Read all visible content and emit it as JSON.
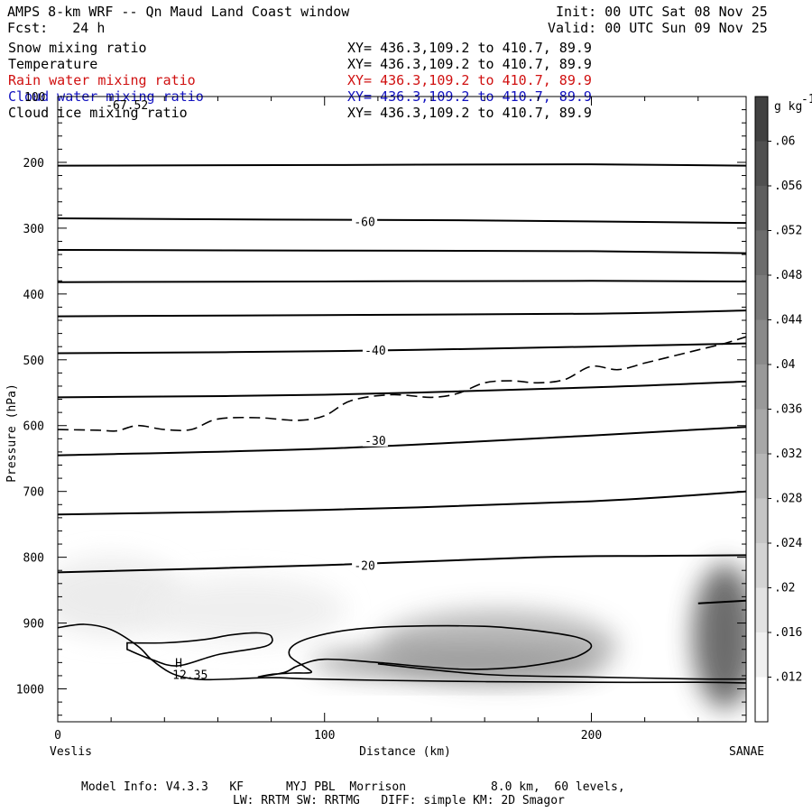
{
  "header": {
    "title": "AMPS 8-km WRF -- Qn Maud Land Coast window",
    "forecast": "Fcst:   24 h",
    "init": "Init: 00 UTC Sat 08 Nov 25",
    "valid": "Valid: 00 UTC Sun 09 Nov 25"
  },
  "legend": [
    {
      "label": "Snow mixing ratio",
      "xy": "XY= 436.3,109.2 to 410.7, 89.9",
      "color": "#000000"
    },
    {
      "label": "Temperature",
      "xy": "XY= 436.3,109.2 to 410.7, 89.9",
      "color": "#000000"
    },
    {
      "label": "Rain water mixing ratio",
      "xy": "XY= 436.3,109.2 to 410.7, 89.9",
      "color": "#d01010"
    },
    {
      "label": "Cloud water mixing ratio",
      "xy": "XY= 436.3,109.2 to 410.7, 89.9",
      "color": "#1010c0"
    },
    {
      "label": "Cloud ice mixing ratio",
      "xy": "XY= 436.3,109.2 to 410.7, 89.9",
      "color": "#000000"
    }
  ],
  "footer": {
    "line1": "Model Info: V4.3.3   KF      MYJ PBL  Morrison            8.0 km,  60 levels,",
    "line2": "LW: RRTM SW: RRTMG   DIFF: simple KM: 2D Smagor"
  },
  "chart_data": {
    "type": "contour",
    "ylabel": "Pressure (hPa)",
    "xlabel": "Distance (km)",
    "x_start_label": "Veslis",
    "x_end_label": "SANAE",
    "xlim": [
      0,
      258
    ],
    "ylim": [
      1050,
      100
    ],
    "y_ticks": [
      200,
      300,
      400,
      500,
      600,
      700,
      800,
      900,
      1000
    ],
    "y_top_tick": "100",
    "x_ticks": [
      0,
      100,
      200
    ],
    "colorbar": {
      "unit": "g kg",
      "unit_sup": "-1",
      "ticks": [
        ".06",
        ".056",
        ".052",
        ".048",
        ".044",
        ".04",
        ".036",
        ".032",
        ".028",
        ".024",
        ".02",
        ".016",
        ".012"
      ]
    },
    "temperature_labels": [
      {
        "text": "-60",
        "x": 115,
        "p": 290
      },
      {
        "text": "-40",
        "x": 119,
        "p": 485
      },
      {
        "text": "-30",
        "x": 119,
        "p": 622
      },
      {
        "text": "-20",
        "x": 115,
        "p": 812
      }
    ],
    "annotations": [
      {
        "text": "-67.52",
        "x": 18,
        "p": 112
      },
      {
        "text": "H",
        "x": 44,
        "p": 960
      },
      {
        "text": "12.35",
        "x": 43,
        "p": 978
      }
    ],
    "isotherms": [
      [
        [
          0,
          205
        ],
        [
          100,
          204
        ],
        [
          200,
          203
        ],
        [
          258,
          205
        ]
      ],
      [
        [
          0,
          285
        ],
        [
          80,
          287
        ],
        [
          150,
          288
        ],
        [
          258,
          292
        ]
      ],
      [
        [
          0,
          333
        ],
        [
          100,
          334
        ],
        [
          200,
          335
        ],
        [
          258,
          338
        ]
      ],
      [
        [
          0,
          382
        ],
        [
          100,
          381
        ],
        [
          200,
          380
        ],
        [
          258,
          381
        ]
      ],
      [
        [
          0,
          434
        ],
        [
          100,
          432
        ],
        [
          200,
          430
        ],
        [
          258,
          425
        ]
      ],
      [
        [
          0,
          490
        ],
        [
          100,
          487
        ],
        [
          200,
          480
        ],
        [
          258,
          475
        ]
      ],
      [
        [
          0,
          557
        ],
        [
          100,
          553
        ],
        [
          200,
          542
        ],
        [
          258,
          533
        ]
      ],
      [
        [
          0,
          645
        ],
        [
          100,
          635
        ],
        [
          200,
          615
        ],
        [
          258,
          602
        ]
      ],
      [
        [
          0,
          735
        ],
        [
          100,
          728
        ],
        [
          200,
          715
        ],
        [
          258,
          700
        ]
      ],
      [
        [
          0,
          823
        ],
        [
          100,
          812
        ],
        [
          180,
          800
        ],
        [
          220,
          798
        ],
        [
          258,
          797
        ]
      ],
      [
        [
          240,
          870
        ],
        [
          258,
          866
        ]
      ]
    ],
    "dashed_line": [
      [
        0,
        606
      ],
      [
        15,
        607
      ],
      [
        22,
        608
      ],
      [
        30,
        600
      ],
      [
        40,
        606
      ],
      [
        50,
        606
      ],
      [
        60,
        590
      ],
      [
        75,
        588
      ],
      [
        90,
        592
      ],
      [
        100,
        585
      ],
      [
        110,
        562
      ],
      [
        125,
        553
      ],
      [
        140,
        557
      ],
      [
        150,
        551
      ],
      [
        160,
        535
      ],
      [
        170,
        532
      ],
      [
        180,
        535
      ],
      [
        190,
        530
      ],
      [
        200,
        510
      ],
      [
        210,
        515
      ],
      [
        220,
        505
      ],
      [
        230,
        495
      ],
      [
        240,
        485
      ],
      [
        250,
        475
      ],
      [
        258,
        465
      ]
    ],
    "surface_lines": [
      [
        [
          0,
          907
        ],
        [
          10,
          902
        ],
        [
          20,
          910
        ],
        [
          30,
          935
        ],
        [
          35,
          955
        ],
        [
          42,
          975
        ],
        [
          48,
          983
        ],
        [
          55,
          986
        ],
        [
          65,
          985
        ],
        [
          80,
          983
        ],
        [
          95,
          985
        ],
        [
          120,
          987
        ],
        [
          160,
          989
        ],
        [
          200,
          990
        ],
        [
          240,
          990
        ],
        [
          258,
          991
        ]
      ],
      [
        [
          26,
          930
        ],
        [
          40,
          930
        ],
        [
          55,
          925
        ],
        [
          65,
          918
        ],
        [
          75,
          915
        ],
        [
          80,
          920
        ],
        [
          78,
          935
        ],
        [
          60,
          948
        ],
        [
          45,
          965
        ],
        [
          35,
          955
        ],
        [
          26,
          940
        ]
      ],
      [
        [
          75,
          982
        ],
        [
          80,
          978
        ],
        [
          88,
          976
        ],
        [
          95,
          975
        ],
        [
          92,
          965
        ],
        [
          87,
          950
        ],
        [
          88,
          935
        ],
        [
          95,
          922
        ],
        [
          110,
          910
        ],
        [
          130,
          905
        ],
        [
          160,
          905
        ],
        [
          180,
          912
        ],
        [
          195,
          922
        ],
        [
          200,
          935
        ],
        [
          195,
          950
        ],
        [
          185,
          960
        ],
        [
          170,
          968
        ],
        [
          150,
          970
        ],
        [
          120,
          960
        ],
        [
          100,
          955
        ],
        [
          90,
          965
        ],
        [
          85,
          975
        ],
        [
          75,
          982
        ]
      ],
      [
        [
          120,
          962
        ],
        [
          160,
          978
        ],
        [
          200,
          982
        ],
        [
          240,
          985
        ],
        [
          258,
          985
        ]
      ]
    ],
    "shading_blobs": [
      {
        "x": 20,
        "p": 860,
        "rx": 28,
        "rp": 60,
        "value": 0.014
      },
      {
        "x": 70,
        "p": 880,
        "rx": 38,
        "rp": 50,
        "value": 0.013
      },
      {
        "x": 165,
        "p": 935,
        "rx": 45,
        "rp": 55,
        "value": 0.03
      },
      {
        "x": 150,
        "p": 960,
        "rx": 55,
        "rp": 25,
        "value": 0.038
      },
      {
        "x": 250,
        "p": 920,
        "rx": 12,
        "rp": 110,
        "value": 0.055
      }
    ]
  }
}
